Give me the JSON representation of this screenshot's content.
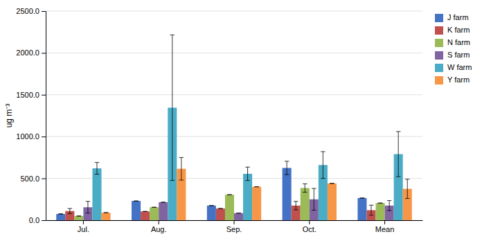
{
  "chart_data": {
    "type": "bar",
    "categories": [
      "Jul.",
      "Aug.",
      "Sep.",
      "Oct.",
      "Mean"
    ],
    "series": [
      {
        "name": "J farm",
        "color": "#4472C4",
        "values": [
          75,
          230,
          175,
          625,
          265
        ],
        "errors": [
          0,
          0,
          0,
          80,
          0
        ]
      },
      {
        "name": "K farm",
        "color": "#C0504D",
        "values": [
          110,
          105,
          140,
          175,
          120
        ],
        "errors": [
          30,
          0,
          0,
          50,
          60
        ]
      },
      {
        "name": "N farm",
        "color": "#9BBB59",
        "values": [
          50,
          155,
          305,
          385,
          205
        ],
        "errors": [
          0,
          0,
          0,
          50,
          0
        ]
      },
      {
        "name": "S farm",
        "color": "#8064A2",
        "values": [
          155,
          215,
          85,
          250,
          175
        ],
        "errors": [
          70,
          0,
          0,
          130,
          60
        ]
      },
      {
        "name": "W farm",
        "color": "#4BACC6",
        "values": [
          620,
          1345,
          555,
          660,
          790
        ],
        "errors": [
          70,
          870,
          80,
          160,
          270
        ]
      },
      {
        "name": "Y farm",
        "color": "#F79646",
        "values": [
          90,
          615,
          400,
          440,
          375
        ],
        "errors": [
          0,
          135,
          0,
          0,
          115
        ]
      }
    ],
    "ylabel": "ug m⁻³",
    "ylim": [
      0,
      2500
    ],
    "yticks": [
      {
        "value": 0,
        "label": "0.0"
      },
      {
        "value": 500,
        "label": "500.0"
      },
      {
        "value": 1000,
        "label": "1000.0"
      },
      {
        "value": 1500,
        "label": "1500.0"
      },
      {
        "value": 2000,
        "label": "2000.0"
      },
      {
        "value": 2500,
        "label": "2500.0"
      }
    ],
    "grid": true,
    "legend": "upper right"
  }
}
